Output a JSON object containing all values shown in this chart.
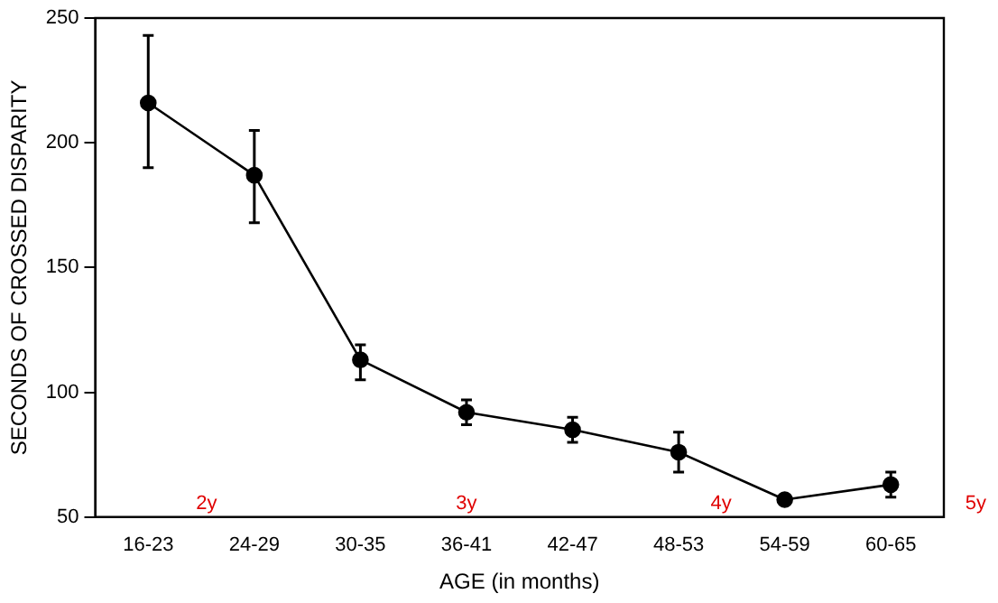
{
  "chart_data": {
    "type": "line",
    "xlabel": "AGE (in months)",
    "ylabel": "SECONDS OF CROSSED DISPARITY",
    "categories": [
      "16-23",
      "24-29",
      "30-35",
      "36-41",
      "42-47",
      "48-53",
      "54-59",
      "60-65"
    ],
    "values": [
      216,
      187,
      113,
      92,
      85,
      76,
      57,
      63
    ],
    "errors": [
      [
        190,
        243
      ],
      [
        168,
        205
      ],
      [
        105,
        119
      ],
      [
        87,
        97
      ],
      [
        80,
        90
      ],
      [
        68,
        84
      ],
      [
        56,
        58
      ],
      [
        58,
        68
      ]
    ],
    "color": "#000000",
    "marker": "circle",
    "line_style": "solid",
    "grid": false,
    "legend": false,
    "ylim": [
      50,
      250
    ],
    "yticks": [
      50,
      100,
      150,
      200,
      250
    ],
    "annotations": [
      "2y",
      "3y",
      "4y",
      "5y"
    ]
  }
}
